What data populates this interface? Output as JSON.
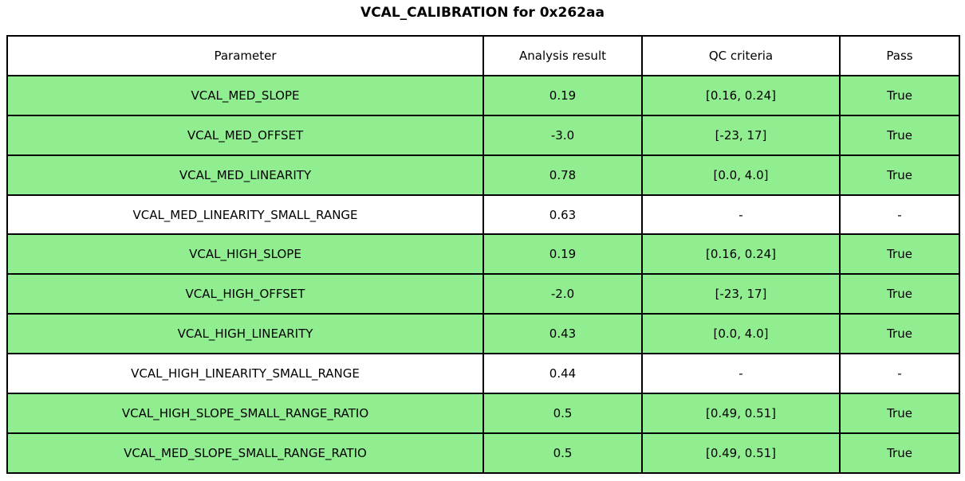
{
  "colors": {
    "pass_row": "#90EE90",
    "plain_row": "#FFFFFF",
    "border": "#000000"
  },
  "chart_data": {
    "type": "table",
    "title": "VCAL_CALIBRATION for 0x262aa",
    "columns": [
      "Parameter",
      "Analysis result",
      "QC criteria",
      "Pass"
    ],
    "rows": [
      {
        "parameter": "VCAL_MED_SLOPE",
        "result": "0.19",
        "criteria": "[0.16, 0.24]",
        "pass": "True",
        "highlight": true
      },
      {
        "parameter": "VCAL_MED_OFFSET",
        "result": "-3.0",
        "criteria": "[-23, 17]",
        "pass": "True",
        "highlight": true
      },
      {
        "parameter": "VCAL_MED_LINEARITY",
        "result": "0.78",
        "criteria": "[0.0, 4.0]",
        "pass": "True",
        "highlight": true
      },
      {
        "parameter": "VCAL_MED_LINEARITY_SMALL_RANGE",
        "result": "0.63",
        "criteria": "-",
        "pass": "-",
        "highlight": false
      },
      {
        "parameter": "VCAL_HIGH_SLOPE",
        "result": "0.19",
        "criteria": "[0.16, 0.24]",
        "pass": "True",
        "highlight": true
      },
      {
        "parameter": "VCAL_HIGH_OFFSET",
        "result": "-2.0",
        "criteria": "[-23, 17]",
        "pass": "True",
        "highlight": true
      },
      {
        "parameter": "VCAL_HIGH_LINEARITY",
        "result": "0.43",
        "criteria": "[0.0, 4.0]",
        "pass": "True",
        "highlight": true
      },
      {
        "parameter": "VCAL_HIGH_LINEARITY_SMALL_RANGE",
        "result": "0.44",
        "criteria": "-",
        "pass": "-",
        "highlight": false
      },
      {
        "parameter": "VCAL_HIGH_SLOPE_SMALL_RANGE_RATIO",
        "result": "0.5",
        "criteria": "[0.49, 0.51]",
        "pass": "True",
        "highlight": true
      },
      {
        "parameter": "VCAL_MED_SLOPE_SMALL_RANGE_RATIO",
        "result": "0.5",
        "criteria": "[0.49, 0.51]",
        "pass": "True",
        "highlight": true
      }
    ]
  }
}
